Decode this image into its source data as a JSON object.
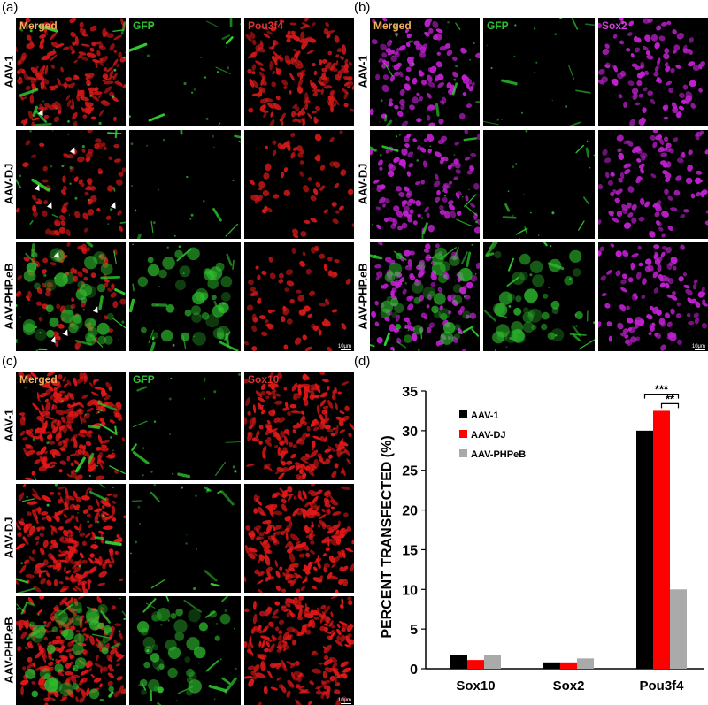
{
  "figure": {
    "panels": [
      {
        "letter": "(a)",
        "channels": [
          "Merged",
          "GFP",
          "Pou3f4"
        ],
        "channel_colors": [
          "#f0b060",
          "#2ec02e",
          "#e03030"
        ],
        "rows": [
          "AAV-1",
          "AAV-DJ",
          "AAV-PHP.eB"
        ],
        "nuclear_color": "#d01818",
        "scale_label": "10μm"
      },
      {
        "letter": "(b)",
        "channels": [
          "Merged",
          "GFP",
          "Sox2"
        ],
        "channel_colors": [
          "#f0b060",
          "#2ec02e",
          "#d040d8"
        ],
        "rows": [
          "AAV-1",
          "AAV-DJ",
          "AAV-PHP.eB"
        ],
        "nuclear_color": "#c020d0",
        "scale_label": "10μm"
      },
      {
        "letter": "(c)",
        "channels": [
          "Merged",
          "GFP",
          "Sox10"
        ],
        "channel_colors": [
          "#f0b060",
          "#2ec02e",
          "#e03030"
        ],
        "rows": [
          "AAV-1",
          "AAV-DJ",
          "AAV-PHP.eB"
        ],
        "nuclear_color": "#e01818",
        "scale_label": "10μm"
      }
    ]
  },
  "chart_data": {
    "letter": "(d)",
    "type": "bar",
    "categories": [
      "Sox10",
      "Sox2",
      "Pou3f4"
    ],
    "series": [
      {
        "name": "AAV-1",
        "color": "#000000",
        "values": [
          1.7,
          0.8,
          30.0
        ]
      },
      {
        "name": "AAV-DJ",
        "color": "#ff0000",
        "values": [
          1.1,
          0.8,
          32.5
        ]
      },
      {
        "name": "AAV-PHPeB",
        "color": "#aaaaaa",
        "values": [
          1.7,
          1.3,
          10.0
        ]
      }
    ],
    "ylabel": "PERCENT TRANSFECTED (%)",
    "ylim": [
      0,
      35
    ],
    "yticks": [
      "0",
      "5",
      "10",
      "15",
      "20",
      "25",
      "30",
      "35"
    ],
    "legend_position": "top-left",
    "significance": [
      "***",
      "**"
    ],
    "grid": false
  }
}
